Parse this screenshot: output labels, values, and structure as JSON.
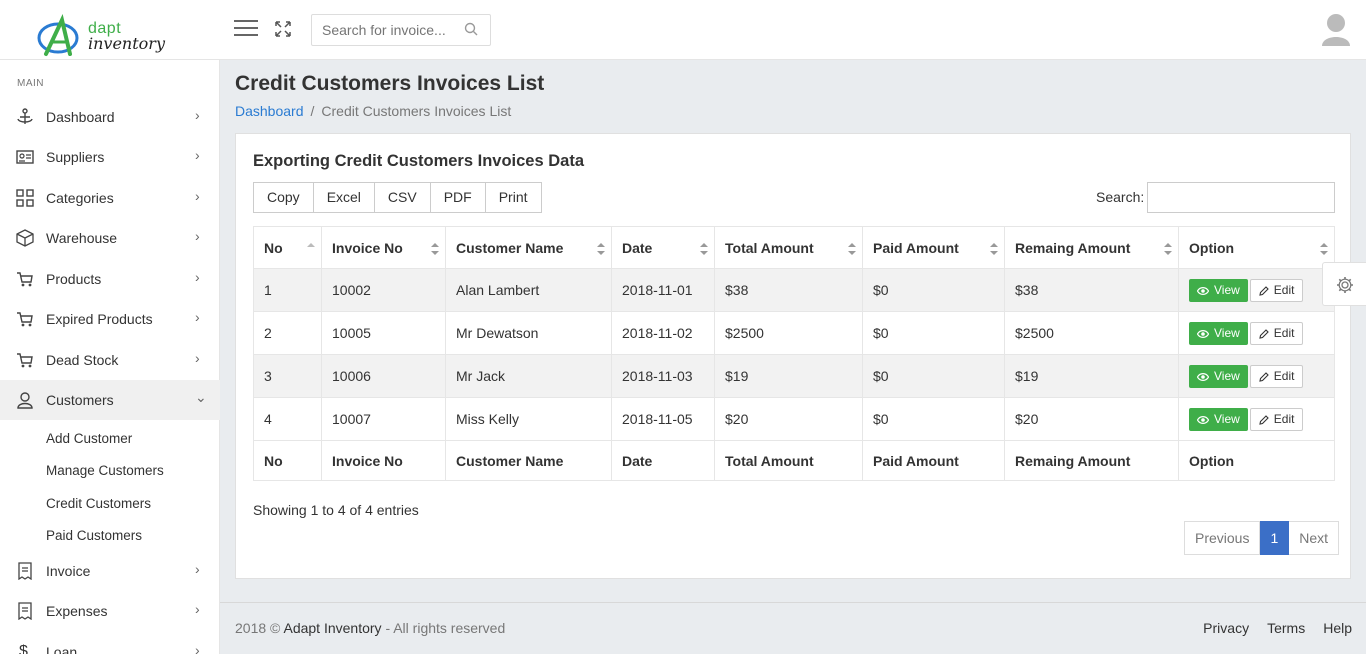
{
  "brand": {
    "line1": "dapt",
    "line2": "inventory"
  },
  "header": {
    "search_placeholder": "Search for invoice..."
  },
  "sidebar": {
    "section_label": "MAIN",
    "items": [
      {
        "label": "Dashboard",
        "icon": "anchor-icon"
      },
      {
        "label": "Suppliers",
        "icon": "id-card-icon"
      },
      {
        "label": "Categories",
        "icon": "grid-icon"
      },
      {
        "label": "Warehouse",
        "icon": "box-icon"
      },
      {
        "label": "Products",
        "icon": "cart-icon"
      },
      {
        "label": "Expired Products",
        "icon": "cart-icon"
      },
      {
        "label": "Dead Stock",
        "icon": "cart-icon"
      },
      {
        "label": "Customers",
        "icon": "user-icon"
      },
      {
        "label": "Invoice",
        "icon": "receipt-icon"
      },
      {
        "label": "Expenses",
        "icon": "receipt-icon"
      },
      {
        "label": "Loan",
        "icon": "dollar-icon"
      }
    ],
    "customers_sub": [
      "Add Customer",
      "Manage Customers",
      "Credit Customers",
      "Paid Customers"
    ]
  },
  "page": {
    "title": "Credit Customers Invoices List",
    "breadcrumb_home": "Dashboard",
    "breadcrumb_sep": "/",
    "breadcrumb_current": "Credit Customers Invoices List"
  },
  "card": {
    "title": "Exporting Credit Customers Invoices Data",
    "export_buttons": [
      "Copy",
      "Excel",
      "CSV",
      "PDF",
      "Print"
    ],
    "search_label": "Search:"
  },
  "table": {
    "headers": [
      "No",
      "Invoice No",
      "Customer Name",
      "Date",
      "Total Amount",
      "Paid Amount",
      "Remaing Amount",
      "Option"
    ],
    "rows": [
      [
        "1",
        "10002",
        "Alan Lambert",
        "2018-11-01",
        "$38",
        "$0",
        "$38"
      ],
      [
        "2",
        "10005",
        "Mr Dewatson",
        "2018-11-02",
        "$2500",
        "$0",
        "$2500"
      ],
      [
        "3",
        "10006",
        "Mr Jack",
        "2018-11-03",
        "$19",
        "$0",
        "$19"
      ],
      [
        "4",
        "10007",
        "Miss Kelly",
        "2018-11-05",
        "$20",
        "$0",
        "$20"
      ]
    ],
    "view_label": "View",
    "edit_label": "Edit"
  },
  "pagination": {
    "info": "Showing 1 to 4 of 4 entries",
    "previous": "Previous",
    "current": "1",
    "next": "Next"
  },
  "footer": {
    "copy_prefix": "2018 ©",
    "brand": "Adapt Inventory",
    "copy_suffix": "- All rights reserved",
    "links": [
      "Privacy",
      "Terms",
      "Help"
    ]
  },
  "colors": {
    "accent_green": "#3fae49",
    "accent_blue": "#3b6fc7",
    "link_blue": "#2a7bd2"
  }
}
